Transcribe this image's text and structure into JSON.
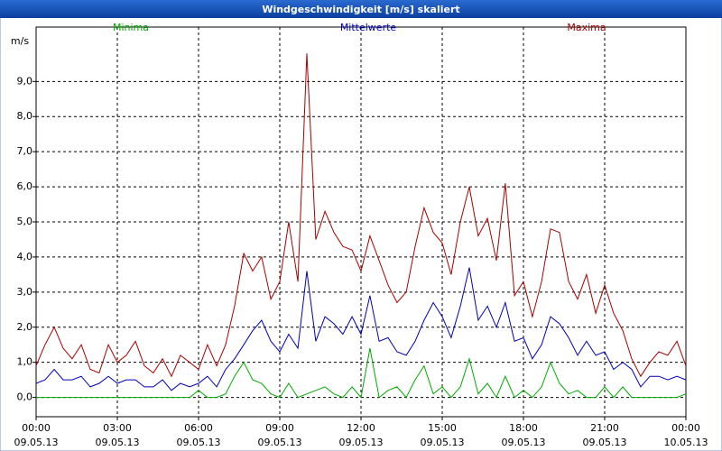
{
  "chart_data": {
    "type": "line",
    "title": "Windgeschwindigkeit [m/s] skaliert",
    "y_label": "m/s",
    "x": [
      0,
      0.33,
      0.67,
      1,
      1.33,
      1.67,
      2,
      2.33,
      2.67,
      3,
      3.33,
      3.67,
      4,
      4.33,
      4.67,
      5,
      5.33,
      5.67,
      6,
      6.33,
      6.67,
      7,
      7.33,
      7.67,
      8,
      8.33,
      8.67,
      9,
      9.33,
      9.67,
      10,
      10.33,
      10.67,
      11,
      11.33,
      11.67,
      12,
      12.33,
      12.67,
      13,
      13.33,
      13.67,
      14,
      14.33,
      14.67,
      15,
      15.33,
      15.67,
      16,
      16.33,
      16.67,
      17,
      17.33,
      17.67,
      18,
      18.33,
      18.67,
      19,
      19.33,
      19.67,
      20,
      20.33,
      20.67,
      21,
      21.33,
      21.67,
      22,
      22.33,
      22.67,
      23,
      23.33,
      23.67,
      24
    ],
    "series": [
      {
        "name": "Minima",
        "color": "#00aa00",
        "values": [
          0,
          0,
          0,
          0,
          0,
          0,
          0,
          0,
          0,
          0,
          0,
          0,
          0,
          0,
          0,
          0,
          0,
          0,
          0.2,
          0,
          0,
          0.1,
          0.6,
          1.0,
          0.5,
          0.4,
          0.1,
          0,
          0.4,
          0,
          0.1,
          0.2,
          0.3,
          0.1,
          0,
          0.3,
          0,
          1.4,
          0,
          0.2,
          0.3,
          0,
          0.5,
          0.9,
          0.1,
          0.3,
          0,
          0.3,
          1.1,
          0.1,
          0.4,
          0,
          0.6,
          0,
          0.2,
          0,
          0.3,
          1.0,
          0.4,
          0.1,
          0.2,
          0,
          0,
          0.3,
          0,
          0.3,
          0,
          0,
          0,
          0,
          0,
          0,
          0.1
        ]
      },
      {
        "name": "Mittelwerte",
        "color": "#0000bb",
        "values": [
          0.4,
          0.5,
          0.8,
          0.5,
          0.5,
          0.6,
          0.3,
          0.4,
          0.6,
          0.4,
          0.5,
          0.5,
          0.3,
          0.3,
          0.5,
          0.2,
          0.4,
          0.3,
          0.4,
          0.6,
          0.3,
          0.8,
          1.1,
          1.5,
          1.9,
          2.2,
          1.6,
          1.3,
          1.8,
          1.4,
          3.6,
          1.6,
          2.3,
          2.1,
          1.8,
          2.3,
          1.8,
          2.9,
          1.6,
          1.7,
          1.3,
          1.2,
          1.6,
          2.2,
          2.7,
          2.3,
          1.7,
          2.6,
          3.7,
          2.2,
          2.6,
          2.0,
          2.7,
          1.6,
          1.7,
          1.1,
          1.5,
          2.3,
          2.1,
          1.7,
          1.2,
          1.6,
          1.2,
          1.3,
          0.8,
          1.0,
          0.8,
          0.3,
          0.6,
          0.6,
          0.5,
          0.6,
          0.5
        ]
      },
      {
        "name": "Maxima",
        "color": "#aa0000",
        "values": [
          0.9,
          1.5,
          2.0,
          1.4,
          1.1,
          1.5,
          0.8,
          0.7,
          1.5,
          1.0,
          1.2,
          1.6,
          0.9,
          0.7,
          1.1,
          0.6,
          1.2,
          1.0,
          0.8,
          1.5,
          0.9,
          1.5,
          2.6,
          4.1,
          3.6,
          4.0,
          2.8,
          3.3,
          5.0,
          3.3,
          9.8,
          4.5,
          5.3,
          4.7,
          4.3,
          4.2,
          3.6,
          4.6,
          3.9,
          3.2,
          2.7,
          3.0,
          4.3,
          5.4,
          4.7,
          4.4,
          3.5,
          5.0,
          6.0,
          4.6,
          5.1,
          3.9,
          6.1,
          2.9,
          3.3,
          2.3,
          3.3,
          4.8,
          4.7,
          3.3,
          2.8,
          3.5,
          2.4,
          3.2,
          2.4,
          1.9,
          1.1,
          0.6,
          1.0,
          1.3,
          1.2,
          1.6,
          0.9
        ]
      }
    ],
    "xlim": [
      0,
      24
    ],
    "xticks": [
      {
        "value": 0,
        "label": "00:00",
        "date": "09.05.13"
      },
      {
        "value": 3,
        "label": "03:00",
        "date": "09.05.13"
      },
      {
        "value": 6,
        "label": "06:00",
        "date": "09.05.13"
      },
      {
        "value": 9,
        "label": "09:00",
        "date": "09.05.13"
      },
      {
        "value": 12,
        "label": "12:00",
        "date": "09.05.13"
      },
      {
        "value": 15,
        "label": "15:00",
        "date": "09.05.13"
      },
      {
        "value": 18,
        "label": "18:00",
        "date": "09.05.13"
      },
      {
        "value": 21,
        "label": "21:00",
        "date": "09.05.13"
      },
      {
        "value": 24,
        "label": "00:00",
        "date": "10.05.13"
      }
    ],
    "ylim": [
      -0.55,
      10.55
    ],
    "yticks": [
      {
        "value": 0,
        "label": "0,0"
      },
      {
        "value": 1,
        "label": "1,0"
      },
      {
        "value": 2,
        "label": "2,0"
      },
      {
        "value": 3,
        "label": "3,0"
      },
      {
        "value": 4,
        "label": "4,0"
      },
      {
        "value": 5,
        "label": "5,0"
      },
      {
        "value": 6,
        "label": "6,0"
      },
      {
        "value": 7,
        "label": "7,0"
      },
      {
        "value": 8,
        "label": "8,0"
      },
      {
        "value": 9,
        "label": "9,0"
      }
    ],
    "grid": true
  }
}
